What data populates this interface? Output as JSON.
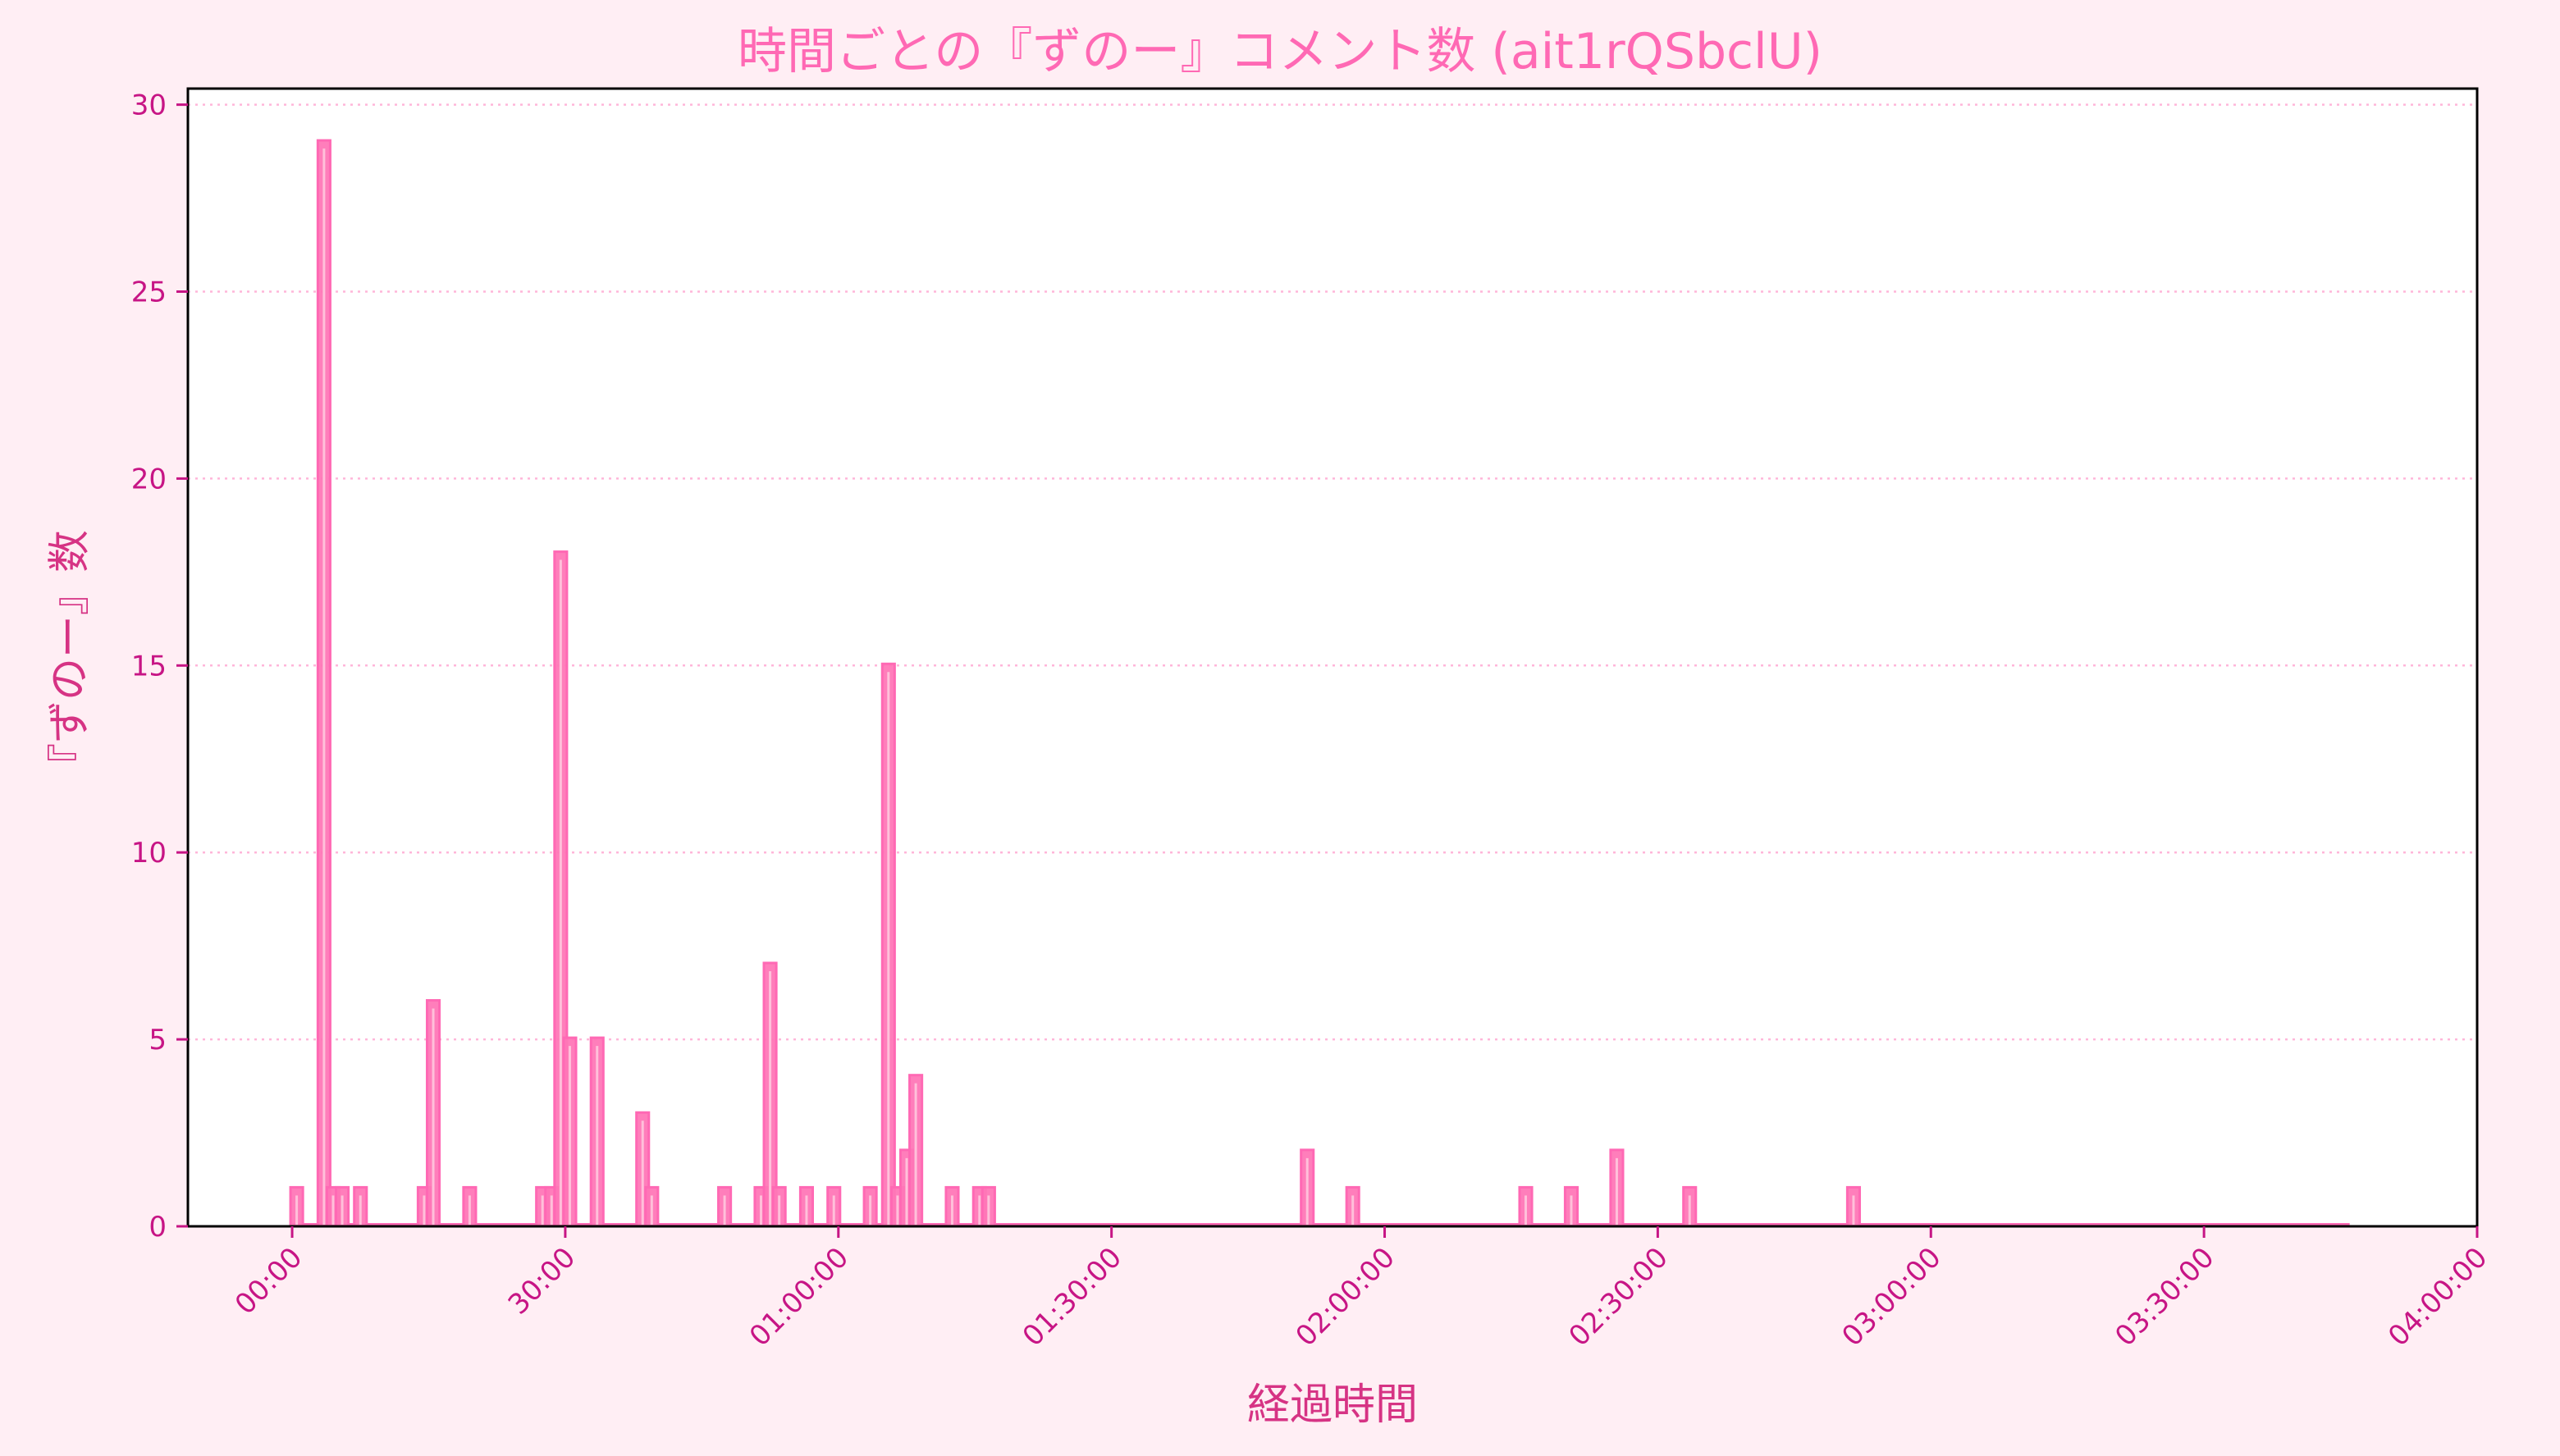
{
  "title": "時間ごとの『ずのー』コメント数 (ait1rQSbclU)",
  "colors": {
    "background": "#FFEEF4",
    "plot_background": "#FFFFFF",
    "bar_fill": "#FF77B7",
    "bar_edge": "#FF69B4",
    "bar_highlight": "#FFC0DA",
    "title": "#FF69B4",
    "axis_label": "#D63384",
    "tick": "#C71585",
    "grid": "#FFB6D9",
    "frame": "#000000"
  },
  "chart_data": {
    "type": "bar",
    "title": "時間ごとの『ずのー』コメント数 (ait1rQSbclU)",
    "xlabel": "経過時間",
    "ylabel": "『ずのー』数",
    "bin_size_minutes": 1,
    "data_range_minutes": [
      0,
      226
    ],
    "xlim_minutes": [
      -11.45,
      240
    ],
    "ylim": [
      0,
      30.43
    ],
    "grid": {
      "axis": "y",
      "style": "dotted"
    },
    "legend": null,
    "x_ticks": [
      {
        "minutes": 0,
        "label": "00:00"
      },
      {
        "minutes": 30,
        "label": "30:00"
      },
      {
        "minutes": 60,
        "label": "01:00:00"
      },
      {
        "minutes": 90,
        "label": "01:30:00"
      },
      {
        "minutes": 120,
        "label": "02:00:00"
      },
      {
        "minutes": 150,
        "label": "02:30:00"
      },
      {
        "minutes": 180,
        "label": "03:00:00"
      },
      {
        "minutes": 210,
        "label": "03:30:00"
      },
      {
        "minutes": 240,
        "label": "04:00:00"
      }
    ],
    "y_ticks": [
      0,
      5,
      10,
      15,
      20,
      25,
      30
    ],
    "bars": [
      {
        "minute": 0,
        "count": 1
      },
      {
        "minute": 3,
        "count": 29
      },
      {
        "minute": 4,
        "count": 1
      },
      {
        "minute": 5,
        "count": 1
      },
      {
        "minute": 7,
        "count": 1
      },
      {
        "minute": 14,
        "count": 1
      },
      {
        "minute": 15,
        "count": 6
      },
      {
        "minute": 19,
        "count": 1
      },
      {
        "minute": 27,
        "count": 1
      },
      {
        "minute": 28,
        "count": 1
      },
      {
        "minute": 29,
        "count": 18
      },
      {
        "minute": 30,
        "count": 5
      },
      {
        "minute": 33,
        "count": 5
      },
      {
        "minute": 38,
        "count": 3
      },
      {
        "minute": 39,
        "count": 1
      },
      {
        "minute": 47,
        "count": 1
      },
      {
        "minute": 51,
        "count": 1
      },
      {
        "minute": 52,
        "count": 7
      },
      {
        "minute": 53,
        "count": 1
      },
      {
        "minute": 56,
        "count": 1
      },
      {
        "minute": 59,
        "count": 1
      },
      {
        "minute": 63,
        "count": 1
      },
      {
        "minute": 65,
        "count": 15
      },
      {
        "minute": 66,
        "count": 1
      },
      {
        "minute": 67,
        "count": 2
      },
      {
        "minute": 68,
        "count": 4
      },
      {
        "minute": 72,
        "count": 1
      },
      {
        "minute": 75,
        "count": 1
      },
      {
        "minute": 76,
        "count": 1
      },
      {
        "minute": 111,
        "count": 2
      },
      {
        "minute": 116,
        "count": 1
      },
      {
        "minute": 135,
        "count": 1
      },
      {
        "minute": 140,
        "count": 1
      },
      {
        "minute": 145,
        "count": 2
      },
      {
        "minute": 153,
        "count": 1
      },
      {
        "minute": 171,
        "count": 1
      }
    ]
  }
}
